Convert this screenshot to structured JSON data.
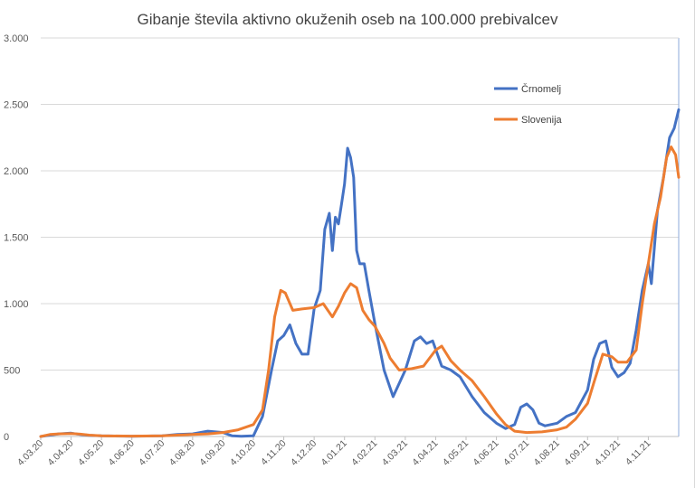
{
  "chart_data": {
    "type": "line",
    "title": "Gibanje števila aktivno okuženih oseb na 100.000 prebivalcev",
    "xlabel": "",
    "ylabel": "",
    "ylim": [
      0,
      3000
    ],
    "yticks": [
      0,
      500,
      1000,
      1500,
      2000,
      2500,
      3000
    ],
    "ytick_labels": [
      "0",
      "500",
      "1.000",
      "1.500",
      "2.000",
      "2.500",
      "3.000"
    ],
    "x_start": "4.03.20",
    "x_end": "10.11.21",
    "categories": [
      "4.03.20",
      "4.04.20",
      "4.05.20",
      "4.06.20",
      "4.07.20",
      "4.08.20",
      "4.09.20",
      "4.10.20",
      "4.11.20",
      "4.12.20",
      "4.01.21",
      "4.02.21",
      "4.03.21",
      "4.04.21",
      "4.05.21",
      "4.06.21",
      "4.07.21",
      "4.08.21",
      "4.09.21",
      "4.10.21",
      "4.11.21"
    ],
    "grid": true,
    "legend_position": "top-right",
    "series": [
      {
        "name": "Črnomelj",
        "color": "#4472C4",
        "points": [
          [
            0,
            0
          ],
          [
            0.3,
            10
          ],
          [
            0.6,
            20
          ],
          [
            1,
            25
          ],
          [
            1.3,
            15
          ],
          [
            1.6,
            8
          ],
          [
            2,
            5
          ],
          [
            3,
            2
          ],
          [
            4,
            5
          ],
          [
            4.5,
            15
          ],
          [
            5,
            20
          ],
          [
            5.5,
            40
          ],
          [
            6,
            30
          ],
          [
            6.3,
            5
          ],
          [
            6.6,
            2
          ],
          [
            7,
            5
          ],
          [
            7.3,
            150
          ],
          [
            7.6,
            500
          ],
          [
            7.8,
            720
          ],
          [
            8,
            760
          ],
          [
            8.2,
            840
          ],
          [
            8.4,
            700
          ],
          [
            8.6,
            620
          ],
          [
            8.8,
            620
          ],
          [
            9,
            960
          ],
          [
            9.2,
            1100
          ],
          [
            9.35,
            1560
          ],
          [
            9.5,
            1680
          ],
          [
            9.6,
            1400
          ],
          [
            9.7,
            1650
          ],
          [
            9.8,
            1600
          ],
          [
            9.9,
            1750
          ],
          [
            10,
            1900
          ],
          [
            10.1,
            2170
          ],
          [
            10.2,
            2100
          ],
          [
            10.3,
            1950
          ],
          [
            10.4,
            1400
          ],
          [
            10.5,
            1300
          ],
          [
            10.65,
            1300
          ],
          [
            10.8,
            1100
          ],
          [
            11,
            850
          ],
          [
            11.3,
            500
          ],
          [
            11.6,
            300
          ],
          [
            12,
            500
          ],
          [
            12.3,
            720
          ],
          [
            12.5,
            750
          ],
          [
            12.7,
            700
          ],
          [
            12.9,
            720
          ],
          [
            13.2,
            530
          ],
          [
            13.5,
            500
          ],
          [
            13.8,
            450
          ],
          [
            14.2,
            300
          ],
          [
            14.6,
            180
          ],
          [
            15,
            100
          ],
          [
            15.3,
            60
          ],
          [
            15.6,
            90
          ],
          [
            15.8,
            220
          ],
          [
            16,
            245
          ],
          [
            16.2,
            200
          ],
          [
            16.4,
            100
          ],
          [
            16.6,
            80
          ],
          [
            17,
            100
          ],
          [
            17.3,
            150
          ],
          [
            17.6,
            180
          ],
          [
            18,
            350
          ],
          [
            18.2,
            580
          ],
          [
            18.4,
            700
          ],
          [
            18.6,
            720
          ],
          [
            18.8,
            520
          ],
          [
            19,
            450
          ],
          [
            19.2,
            480
          ],
          [
            19.4,
            550
          ],
          [
            19.6,
            800
          ],
          [
            19.8,
            1100
          ],
          [
            20,
            1300
          ],
          [
            20.1,
            1150
          ],
          [
            20.3,
            1700
          ],
          [
            20.5,
            1950
          ],
          [
            20.7,
            2250
          ],
          [
            20.85,
            2320
          ],
          [
            21,
            2460
          ]
        ]
      },
      {
        "name": "Slovenija",
        "color": "#ED7D31",
        "points": [
          [
            0,
            0
          ],
          [
            0.3,
            15
          ],
          [
            0.6,
            20
          ],
          [
            1,
            22
          ],
          [
            1.3,
            18
          ],
          [
            1.6,
            10
          ],
          [
            2,
            5
          ],
          [
            3,
            3
          ],
          [
            4,
            5
          ],
          [
            4.5,
            10
          ],
          [
            5,
            15
          ],
          [
            5.5,
            20
          ],
          [
            6,
            30
          ],
          [
            6.5,
            50
          ],
          [
            7,
            90
          ],
          [
            7.3,
            200
          ],
          [
            7.5,
            500
          ],
          [
            7.7,
            900
          ],
          [
            7.9,
            1100
          ],
          [
            8.05,
            1080
          ],
          [
            8.3,
            950
          ],
          [
            8.6,
            960
          ],
          [
            9,
            970
          ],
          [
            9.3,
            1000
          ],
          [
            9.6,
            900
          ],
          [
            9.8,
            980
          ],
          [
            10,
            1080
          ],
          [
            10.2,
            1150
          ],
          [
            10.4,
            1120
          ],
          [
            10.6,
            950
          ],
          [
            10.8,
            880
          ],
          [
            11,
            830
          ],
          [
            11.3,
            700
          ],
          [
            11.5,
            590
          ],
          [
            11.8,
            500
          ],
          [
            12.2,
            510
          ],
          [
            12.6,
            530
          ],
          [
            13,
            650
          ],
          [
            13.2,
            680
          ],
          [
            13.5,
            570
          ],
          [
            13.8,
            500
          ],
          [
            14.2,
            420
          ],
          [
            14.6,
            300
          ],
          [
            15,
            170
          ],
          [
            15.3,
            90
          ],
          [
            15.6,
            40
          ],
          [
            16,
            30
          ],
          [
            16.5,
            35
          ],
          [
            17,
            50
          ],
          [
            17.3,
            70
          ],
          [
            17.6,
            130
          ],
          [
            18,
            250
          ],
          [
            18.2,
            400
          ],
          [
            18.5,
            620
          ],
          [
            18.8,
            600
          ],
          [
            19,
            560
          ],
          [
            19.3,
            560
          ],
          [
            19.6,
            650
          ],
          [
            19.8,
            1000
          ],
          [
            20,
            1300
          ],
          [
            20.2,
            1600
          ],
          [
            20.4,
            1800
          ],
          [
            20.6,
            2100
          ],
          [
            20.75,
            2180
          ],
          [
            20.9,
            2120
          ],
          [
            21,
            1950
          ]
        ]
      }
    ]
  }
}
